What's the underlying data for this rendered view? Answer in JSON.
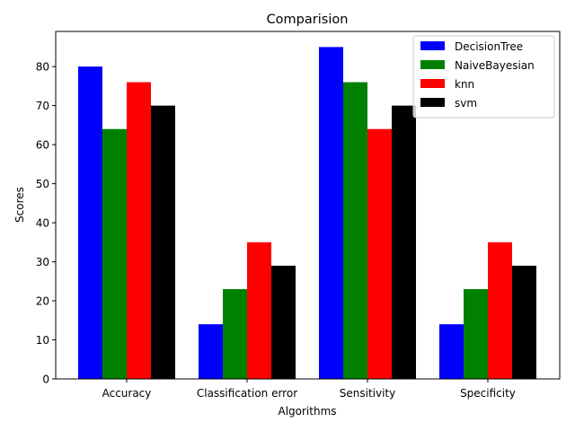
{
  "chart_data": {
    "type": "bar",
    "title": "Comparision",
    "xlabel": "Algorithms",
    "ylabel": "Scores",
    "categories": [
      "Accuracy",
      "Classification error",
      "Sensitivity",
      "Specificity"
    ],
    "series": [
      {
        "name": "DecisionTree",
        "color": "#0000ff",
        "values": [
          80,
          14,
          85,
          14
        ]
      },
      {
        "name": "NaiveBayesian",
        "color": "#008000",
        "values": [
          64,
          23,
          76,
          23
        ]
      },
      {
        "name": "knn",
        "color": "#ff0000",
        "values": [
          76,
          35,
          64,
          35
        ]
      },
      {
        "name": "svm",
        "color": "#000000",
        "values": [
          70,
          29,
          70,
          29
        ]
      }
    ],
    "ylim": [
      0,
      89
    ],
    "yticks": [
      0,
      10,
      20,
      30,
      40,
      50,
      60,
      70,
      80
    ],
    "grid": false,
    "legend_position": "top-right"
  }
}
